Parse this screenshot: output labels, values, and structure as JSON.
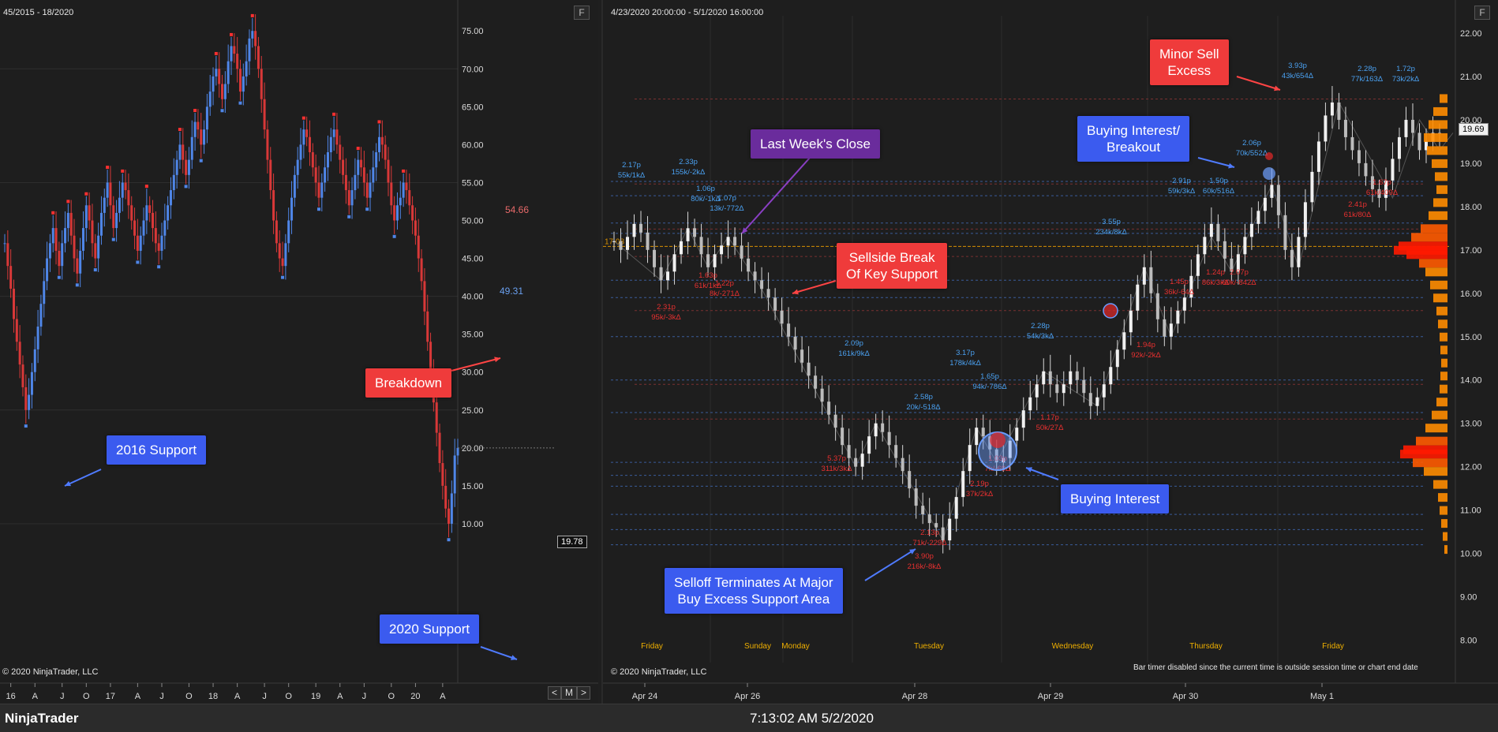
{
  "app": {
    "brand": "NinjaTrader",
    "clock": "7:13:02 AM 5/2/2020"
  },
  "left_chart": {
    "range_label": "45/2015 - 18/2020",
    "f_label": "F",
    "copyright": "© 2020 NinjaTrader, LLC",
    "current_price": "19.78",
    "nav": [
      "<",
      "M",
      ">"
    ],
    "callouts": {
      "support_2016": "2016 Support",
      "breakdown": "Breakdown",
      "support_2020": "2020 Support"
    },
    "price_labels": {
      "high": "54.66",
      "low": "49.31"
    },
    "colors": {
      "up": "#4f86e8",
      "down": "#d83838",
      "text_red": "#e86a6a",
      "text_blue": "#6aa0f0"
    }
  },
  "right_chart": {
    "range_label": "4/23/2020 20:00:00 - 5/1/2020 16:00:00",
    "f_label": "F",
    "copyright": "© 2020 NinjaTrader, LLC",
    "current_price": "19.69",
    "bar_timer": "Bar timer disabled since the current time is outside session time or chart end date",
    "callouts": {
      "last_week_close": "Last Week's Close",
      "sellside_break_1": "Sellside Break",
      "sellside_break_2": "Of Key Support",
      "selloff_1": "Selloff Terminates At Major",
      "selloff_2": "Buy Excess Support Area",
      "buying_interest": "Buying Interest",
      "buying_breakout_1": "Buying Interest/",
      "buying_breakout_2": "Breakout",
      "minor_sell_1": "Minor Sell",
      "minor_sell_2": "Excess"
    },
    "left_tag": "17.08",
    "colors": {
      "candle": "#d8d8d8",
      "blue_label": "#4aa0f0",
      "red_label": "#e83030",
      "day_label": "#f0b000",
      "profile_red": "#ff1a00",
      "profile_orange": "#ff8c00"
    }
  },
  "chart_data": [
    {
      "type": "bar",
      "title": "",
      "xlabel": "",
      "ylabel": "",
      "ylim": [
        5,
        77
      ],
      "y_ticks": [
        "75.00",
        "70.00",
        "65.00",
        "60.00",
        "55.00",
        "50.00",
        "45.00",
        "40.00",
        "35.00",
        "30.00",
        "25.00",
        "20.00",
        "15.00",
        "10.00"
      ],
      "y_tick_values": [
        75,
        70,
        65,
        60,
        55,
        50,
        45,
        40,
        35,
        30,
        25,
        20,
        15,
        10
      ],
      "x_ticks": [
        "16",
        "A",
        "J",
        "O",
        "17",
        "A",
        "J",
        "O",
        "18",
        "A",
        "J",
        "O",
        "19",
        "A",
        "J",
        "O",
        "20",
        "A"
      ],
      "x_tick_index": [
        3,
        17,
        31,
        45,
        59,
        73,
        87,
        101,
        115,
        129,
        143,
        157,
        171,
        185,
        199,
        213,
        227,
        241
      ],
      "series_closes": [
        47,
        44,
        41,
        37,
        34,
        31,
        28,
        25,
        27,
        30,
        33,
        36,
        39,
        42,
        45,
        47,
        49,
        46,
        44,
        47,
        49,
        51,
        48,
        45,
        43,
        46,
        49,
        52,
        50,
        47,
        45,
        48,
        51,
        53,
        55,
        52,
        49,
        51,
        53,
        55,
        54,
        52,
        50,
        48,
        46,
        48,
        50,
        52,
        51,
        49,
        47,
        46,
        48,
        50,
        52,
        54,
        56,
        58,
        60,
        58,
        56,
        58,
        61,
        63,
        62,
        60,
        62,
        65,
        67,
        69,
        70,
        68,
        66,
        68,
        71,
        73,
        72,
        70,
        67,
        69,
        71,
        74,
        75,
        73,
        70,
        66,
        62,
        58,
        54,
        50,
        47,
        45,
        44,
        47,
        50,
        53,
        56,
        58,
        60,
        62,
        61,
        59,
        57,
        55,
        53,
        55,
        57,
        59,
        61,
        62,
        60,
        58,
        56,
        54,
        52,
        54,
        56,
        58,
        57,
        55,
        53,
        55,
        57,
        59,
        61,
        60,
        58,
        55,
        52,
        50,
        52,
        53,
        55,
        54,
        52,
        50,
        48,
        45,
        42,
        38,
        34,
        30,
        26,
        22,
        18,
        15,
        12,
        10,
        14,
        19,
        20
      ]
    },
    {
      "type": "bar",
      "title": "",
      "xlabel": "",
      "ylabel": "",
      "ylim": [
        7.3,
        22.4
      ],
      "y_ticks": [
        "22.00",
        "21.00",
        "20.00",
        "19.00",
        "18.00",
        "17.00",
        "16.00",
        "15.00",
        "14.00",
        "13.00",
        "12.00",
        "11.00",
        "10.00",
        "9.00",
        "8.00"
      ],
      "y_tick_values": [
        22,
        21,
        20,
        19,
        18,
        17,
        16,
        15,
        14,
        13,
        12,
        11,
        10,
        9,
        8
      ],
      "x_ticks": [
        "Apr 24",
        "Apr 26",
        "Apr 28",
        "Apr 29",
        "Apr 30",
        "May 1"
      ],
      "day_labels": [
        "Friday",
        "Sunday",
        "Monday",
        "Tuesday",
        "Wednesday",
        "Thursday",
        "Friday"
      ],
      "series_closes": [
        17.2,
        17.0,
        17.3,
        17.6,
        17.4,
        17.0,
        16.6,
        16.3,
        16.5,
        16.9,
        17.2,
        17.5,
        17.3,
        16.9,
        16.6,
        16.9,
        17.1,
        17.3,
        17.1,
        16.8,
        16.5,
        16.3,
        16.1,
        15.9,
        15.6,
        15.3,
        15.0,
        14.7,
        14.4,
        14.1,
        13.8,
        13.5,
        13.2,
        12.9,
        12.5,
        12.2,
        12.0,
        12.3,
        12.7,
        13.0,
        12.8,
        12.5,
        12.2,
        11.9,
        11.5,
        11.1,
        10.9,
        10.7,
        10.6,
        10.3,
        10.8,
        11.3,
        11.9,
        12.5,
        12.9,
        12.7,
        12.4,
        12.1,
        12.2,
        12.6,
        12.9,
        13.3,
        13.6,
        13.9,
        14.2,
        13.9,
        13.7,
        13.9,
        14.2,
        14.0,
        13.7,
        13.4,
        13.6,
        13.9,
        14.3,
        14.7,
        15.1,
        15.6,
        16.2,
        16.6,
        16.0,
        15.4,
        15.0,
        15.3,
        15.6,
        15.9,
        16.4,
        16.9,
        17.3,
        17.6,
        17.2,
        16.8,
        16.5,
        16.9,
        17.3,
        17.6,
        17.9,
        18.2,
        18.5,
        17.8,
        17.0,
        16.6,
        17.3,
        18.1,
        18.8,
        19.5,
        20.1,
        20.4,
        20.0,
        19.6,
        19.3,
        19.0,
        18.7,
        18.4,
        18.2,
        18.6,
        19.1,
        19.6,
        20.0,
        19.7,
        19.3,
        19.5,
        19.7,
        19.69
      ],
      "annotations": [
        {
          "stat": "2.17p",
          "vol": "55k/1kΔ",
          "color": "blue"
        },
        {
          "stat": "2.33p",
          "vol": "155k/-2kΔ",
          "color": "blue"
        },
        {
          "stat": "1.06p",
          "vol": "80k/-1kΔ",
          "color": "blue"
        },
        {
          "stat": "1.07p",
          "vol": "13k/-772Δ",
          "color": "blue"
        },
        {
          "stat": "2.31p",
          "vol": "95k/-3kΔ",
          "color": "red"
        },
        {
          "stat": "1.63p",
          "vol": "61k/1kΔ",
          "color": "red"
        },
        {
          "stat": "1.22p",
          "vol": "8k/-271Δ",
          "color": "red"
        },
        {
          "stat": "2.09p",
          "vol": "161k/9kΔ",
          "color": "blue"
        },
        {
          "stat": "5.37p",
          "vol": "311k/3kΔ",
          "color": "red"
        },
        {
          "stat": "3.17p",
          "vol": "178k/4kΔ",
          "color": "blue"
        },
        {
          "stat": "2.58p",
          "vol": "20k/-518Δ",
          "color": "blue"
        },
        {
          "stat": "1.65p",
          "vol": "94k/-786Δ",
          "color": "blue"
        },
        {
          "stat": "2.28p",
          "vol": "54k/3kΔ",
          "color": "blue"
        },
        {
          "stat": "1.03p",
          "vol": "7k/-69Δ",
          "color": "red"
        },
        {
          "stat": "2.19p",
          "vol": "37k/2kΔ",
          "color": "red"
        },
        {
          "stat": "1.17p",
          "vol": "50k/27Δ",
          "color": "red"
        },
        {
          "stat": "2.13p",
          "vol": "71k/-229Δ",
          "color": "red"
        },
        {
          "stat": "3.90p",
          "vol": "216k/-8kΔ",
          "color": "red"
        },
        {
          "stat": "3.55p",
          "vol": "234k/8kΔ",
          "color": "blue"
        },
        {
          "stat": "1.94p",
          "vol": "92k/-2kΔ",
          "color": "red"
        },
        {
          "stat": "2.91p",
          "vol": "59k/3kΔ",
          "color": "blue"
        },
        {
          "stat": "1.50p",
          "vol": "60k/516Δ",
          "color": "blue"
        },
        {
          "stat": "1.45p",
          "vol": "36k/-64Δ",
          "color": "red"
        },
        {
          "stat": "1.24p",
          "vol": "86k/3kΔ",
          "color": "red"
        },
        {
          "stat": "2.07p",
          "vol": "60k/-842Δ",
          "color": "red"
        },
        {
          "stat": "2.06p",
          "vol": "70k/552Δ",
          "color": "blue"
        },
        {
          "stat": "3.93p",
          "vol": "43k/654Δ",
          "color": "blue"
        },
        {
          "stat": "2.28p",
          "vol": "77k/163Δ",
          "color": "blue"
        },
        {
          "stat": "1.72p",
          "vol": "73k/2kΔ",
          "color": "blue"
        },
        {
          "stat": "2.41p",
          "vol": "61k/80Δ",
          "color": "red"
        },
        {
          "stat": "1.67p",
          "vol": "61k/409Δ",
          "color": "red"
        }
      ]
    }
  ]
}
